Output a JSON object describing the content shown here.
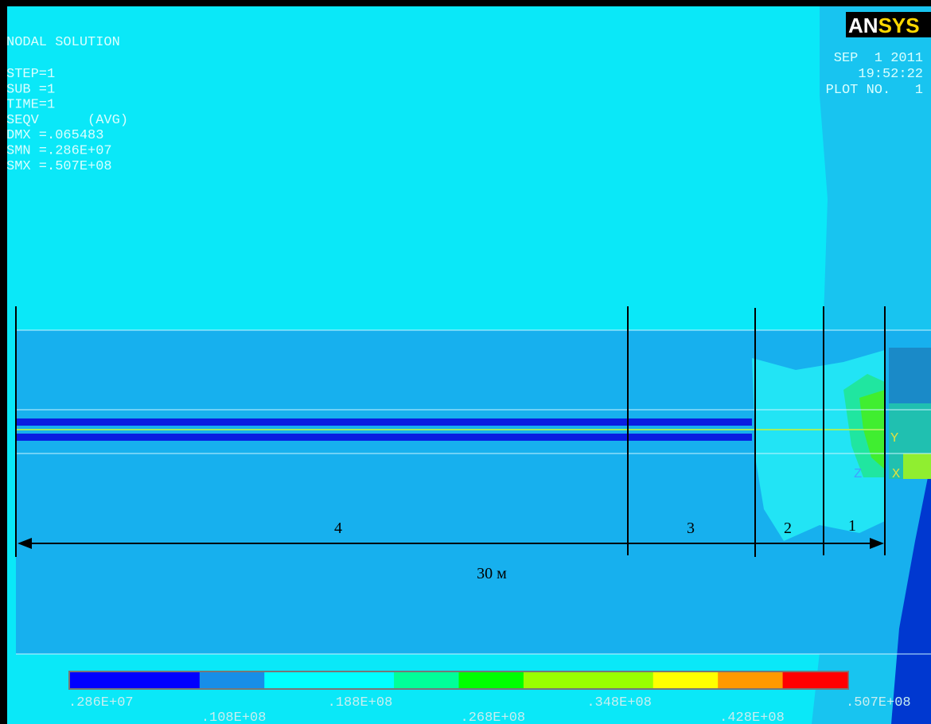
{
  "header": {
    "lines": [
      "NODAL SOLUTION",
      "STEP=1",
      "SUB =1",
      "TIME=1",
      "SEQV      (AVG)",
      "DMX =.065483",
      "SMN =.286E+07",
      "SMX =.507E+08"
    ]
  },
  "logo": {
    "part1": "AN",
    "part2": "SYS"
  },
  "stamp": {
    "date": "SEP  1 2011",
    "time": "19:52:22",
    "plot": "PLOT NO.   1"
  },
  "zones": {
    "labels": [
      "4",
      "3",
      "2",
      "1"
    ],
    "dimension": "30 м"
  },
  "triad": {
    "y": "Y",
    "x": "X",
    "z": "Z"
  },
  "legend": {
    "labels": [
      ".286E+07",
      ".108E+08",
      ".188E+08",
      ".268E+08",
      ".348E+08",
      ".428E+08",
      ".507E+08"
    ],
    "colors": [
      "#0000ff",
      "#0000ff",
      "#178ee8",
      "#00ffff",
      "#00ffff",
      "#00ff99",
      "#00ff00",
      "#99ff00",
      "#99ff00",
      "#ffff00",
      "#ff9900",
      "#ff0000"
    ]
  }
}
